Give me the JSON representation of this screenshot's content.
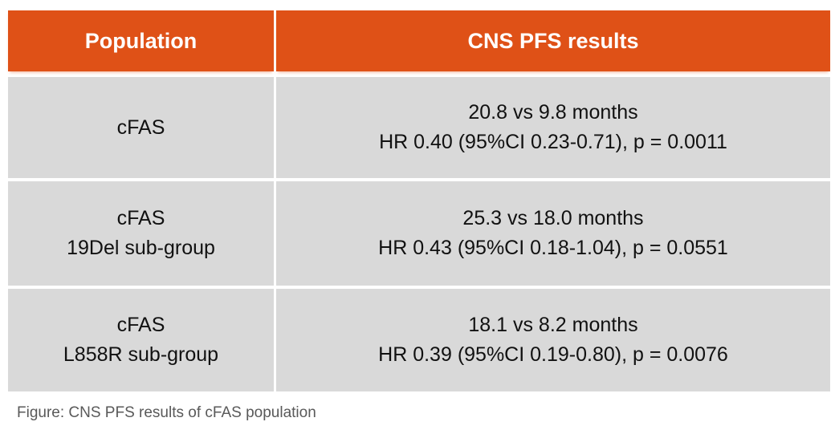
{
  "table": {
    "header": {
      "population": "Population",
      "results": "CNS PFS results"
    },
    "rows": [
      {
        "population_line1": "cFAS",
        "population_line2": "",
        "result_line1": "20.8 vs 9.8 months",
        "result_line2": "HR 0.40 (95%CI 0.23-0.71), p = 0.0011"
      },
      {
        "population_line1": "cFAS",
        "population_line2": "19Del sub-group",
        "result_line1": "25.3 vs 18.0 months",
        "result_line2": "HR 0.43 (95%CI 0.18-1.04), p = 0.0551"
      },
      {
        "population_line1": "cFAS",
        "population_line2": "L858R sub-group",
        "result_line1": "18.1 vs 8.2 months",
        "result_line2": "HR 0.39 (95%CI 0.19-0.80), p = 0.0076"
      }
    ]
  },
  "caption": "Figure: CNS PFS results of cFAS population",
  "colors": {
    "header_bg": "#DF5117",
    "header_text": "#FFFFFF",
    "row_bg": "#D9D9D9",
    "cell_text": "#111111",
    "caption_text": "#595959"
  },
  "chart_data": {
    "type": "table",
    "title": "CNS PFS results of cFAS population",
    "columns": [
      "Population",
      "CNS PFS results"
    ],
    "rows": [
      [
        "cFAS",
        "20.8 vs 9.8 months — HR 0.40 (95%CI 0.23-0.71), p = 0.0011"
      ],
      [
        "cFAS 19Del sub-group",
        "25.3 vs 18.0 months — HR 0.43 (95%CI 0.18-1.04), p = 0.0551"
      ],
      [
        "cFAS L858R sub-group",
        "18.1 vs 8.2 months — HR 0.39 (95%CI 0.19-0.80), p = 0.0076"
      ]
    ],
    "parsed_values": [
      {
        "population": "cFAS",
        "median_pfs_months": [
          20.8,
          9.8
        ],
        "hazard_ratio": 0.4,
        "ci95": [
          0.23,
          0.71
        ],
        "p_value": 0.0011
      },
      {
        "population": "cFAS 19Del sub-group",
        "median_pfs_months": [
          25.3,
          18.0
        ],
        "hazard_ratio": 0.43,
        "ci95": [
          0.18,
          1.04
        ],
        "p_value": 0.0551
      },
      {
        "population": "cFAS L858R sub-group",
        "median_pfs_months": [
          18.1,
          8.2
        ],
        "hazard_ratio": 0.39,
        "ci95": [
          0.19,
          0.8
        ],
        "p_value": 0.0076
      }
    ],
    "caption": "Figure: CNS PFS results of cFAS population",
    "layout": "header row orange (#DF5117), body rows light gray (#D9D9D9), white gaps as cell separators"
  }
}
